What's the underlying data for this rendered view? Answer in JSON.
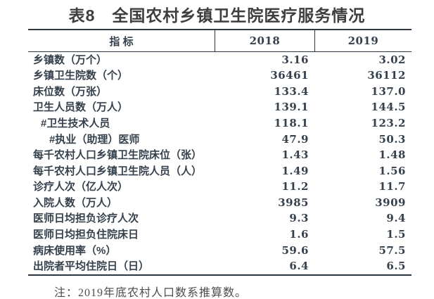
{
  "title": "表8　全国农村乡镇卫生院医疗服务情况",
  "note": "注：2019年底农村人口数系推算数。",
  "colors": {
    "text": "#36414d",
    "line": "#2c3640",
    "title": "#3e3e3e",
    "note": "#4d4d4d",
    "background": "#ffffff"
  },
  "table": {
    "columns": [
      "指 标",
      "2018",
      "2019"
    ],
    "rows": [
      {
        "indicator": "乡镇数（万个）",
        "v2018": "3.16",
        "v2019": "3.02",
        "indent": 0
      },
      {
        "indicator": "乡镇卫生院数（个）",
        "v2018": "36461",
        "v2019": "36112",
        "indent": 0
      },
      {
        "indicator": "床位数（万张）",
        "v2018": "133.4",
        "v2019": "137.0",
        "indent": 0
      },
      {
        "indicator": "卫生人员数（万人）",
        "v2018": "139.1",
        "v2019": "144.5",
        "indent": 0
      },
      {
        "indicator": "#卫生技术人员",
        "v2018": "118.1",
        "v2019": "123.2",
        "indent": 1
      },
      {
        "indicator": "#执业（助理）医师",
        "v2018": "47.9",
        "v2019": "50.3",
        "indent": 2
      },
      {
        "indicator": "每千农村人口乡镇卫生院床位（张）",
        "v2018": "1.43",
        "v2019": "1.48",
        "indent": 0
      },
      {
        "indicator": "每千农村人口乡镇卫生院人员（人）",
        "v2018": "1.49",
        "v2019": "1.56",
        "indent": 0
      },
      {
        "indicator": "诊疗人次（亿人次）",
        "v2018": "11.2",
        "v2019": "11.7",
        "indent": 0
      },
      {
        "indicator": "入院人数（万人）",
        "v2018": "3985",
        "v2019": "3909",
        "indent": 0
      },
      {
        "indicator": "医师日均担负诊疗人次",
        "v2018": "9.3",
        "v2019": "9.4",
        "indent": 0
      },
      {
        "indicator": "医师日均担负住院床日",
        "v2018": "1.6",
        "v2019": "1.5",
        "indent": 0
      },
      {
        "indicator": "病床使用率（%）",
        "v2018": "59.6",
        "v2019": "57.5",
        "indent": 0
      },
      {
        "indicator": "出院者平均住院日（日）",
        "v2018": "6.4",
        "v2019": "6.5",
        "indent": 0
      }
    ]
  }
}
